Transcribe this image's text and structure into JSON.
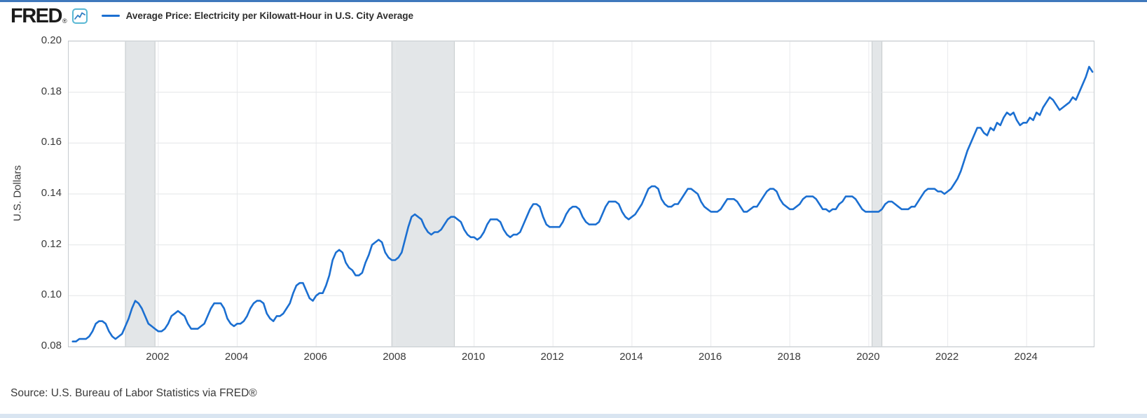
{
  "header": {
    "logo_text": "FRED",
    "registered_mark": "®",
    "legend": {
      "label": "Average Price: Electricity per Kilowatt-Hour in U.S. City Average",
      "line_color": "#1b6fd1"
    }
  },
  "footer": {
    "source": "Source: U.S. Bureau of Labor Statistics via FRED®"
  },
  "colors": {
    "top_bar": "#3f78bc",
    "bottom_bar": "#d9e5f1"
  },
  "chart_data": {
    "type": "line",
    "title": "Average Price: Electricity per Kilowatt-Hour in U.S. City Average",
    "xlabel": "",
    "ylabel": "U.S. Dollars",
    "ylim": [
      0.08,
      0.2
    ],
    "xlim_years": [
      1999.73,
      2025.7
    ],
    "y_ticks": [
      0.08,
      0.1,
      0.12,
      0.14,
      0.16,
      0.18,
      0.2
    ],
    "x_ticks": [
      2002,
      2004,
      2006,
      2008,
      2010,
      2012,
      2014,
      2016,
      2018,
      2020,
      2022,
      2024
    ],
    "grid": true,
    "legend_position": "top-left",
    "line_color": "#1b6fd1",
    "band_color": "#e3e6e8",
    "recession_bands": [
      [
        2001.167,
        2001.917
      ],
      [
        2007.917,
        2009.5
      ],
      [
        2020.083,
        2020.333
      ]
    ],
    "series": [
      {
        "name": "Average Price: Electricity per Kilowatt-Hour in U.S. City Average",
        "units": "U.S. Dollars",
        "frequency": "monthly",
        "start": "1999-11",
        "values": [
          0.082,
          0.082,
          0.083,
          0.083,
          0.083,
          0.084,
          0.086,
          0.089,
          0.09,
          0.09,
          0.089,
          0.086,
          0.084,
          0.083,
          0.084,
          0.085,
          0.088,
          0.091,
          0.095,
          0.098,
          0.097,
          0.095,
          0.092,
          0.089,
          0.088,
          0.087,
          0.086,
          0.086,
          0.087,
          0.089,
          0.092,
          0.093,
          0.094,
          0.093,
          0.092,
          0.089,
          0.087,
          0.087,
          0.087,
          0.088,
          0.089,
          0.092,
          0.095,
          0.097,
          0.097,
          0.097,
          0.095,
          0.091,
          0.089,
          0.088,
          0.089,
          0.089,
          0.09,
          0.092,
          0.095,
          0.097,
          0.098,
          0.098,
          0.097,
          0.093,
          0.091,
          0.09,
          0.092,
          0.092,
          0.093,
          0.095,
          0.097,
          0.101,
          0.104,
          0.105,
          0.105,
          0.102,
          0.099,
          0.098,
          0.1,
          0.101,
          0.101,
          0.104,
          0.108,
          0.114,
          0.117,
          0.118,
          0.117,
          0.113,
          0.111,
          0.11,
          0.108,
          0.108,
          0.109,
          0.113,
          0.116,
          0.12,
          0.121,
          0.122,
          0.121,
          0.117,
          0.115,
          0.114,
          0.114,
          0.115,
          0.117,
          0.122,
          0.127,
          0.131,
          0.132,
          0.131,
          0.13,
          0.127,
          0.125,
          0.124,
          0.125,
          0.125,
          0.126,
          0.128,
          0.13,
          0.131,
          0.131,
          0.13,
          0.129,
          0.126,
          0.124,
          0.123,
          0.123,
          0.122,
          0.123,
          0.125,
          0.128,
          0.13,
          0.13,
          0.13,
          0.129,
          0.126,
          0.124,
          0.123,
          0.124,
          0.124,
          0.125,
          0.128,
          0.131,
          0.134,
          0.136,
          0.136,
          0.135,
          0.131,
          0.128,
          0.127,
          0.127,
          0.127,
          0.127,
          0.129,
          0.132,
          0.134,
          0.135,
          0.135,
          0.134,
          0.131,
          0.129,
          0.128,
          0.128,
          0.128,
          0.129,
          0.132,
          0.135,
          0.137,
          0.137,
          0.137,
          0.136,
          0.133,
          0.131,
          0.13,
          0.131,
          0.132,
          0.134,
          0.136,
          0.139,
          0.142,
          0.143,
          0.143,
          0.142,
          0.138,
          0.136,
          0.135,
          0.135,
          0.136,
          0.136,
          0.138,
          0.14,
          0.142,
          0.142,
          0.141,
          0.14,
          0.137,
          0.135,
          0.134,
          0.133,
          0.133,
          0.133,
          0.134,
          0.136,
          0.138,
          0.138,
          0.138,
          0.137,
          0.135,
          0.133,
          0.133,
          0.134,
          0.135,
          0.135,
          0.137,
          0.139,
          0.141,
          0.142,
          0.142,
          0.141,
          0.138,
          0.136,
          0.135,
          0.134,
          0.134,
          0.135,
          0.136,
          0.138,
          0.139,
          0.139,
          0.139,
          0.138,
          0.136,
          0.134,
          0.134,
          0.133,
          0.134,
          0.134,
          0.136,
          0.137,
          0.139,
          0.139,
          0.139,
          0.138,
          0.136,
          0.134,
          0.133,
          0.133,
          0.133,
          0.133,
          0.133,
          0.134,
          0.136,
          0.137,
          0.137,
          0.136,
          0.135,
          0.134,
          0.134,
          0.134,
          0.135,
          0.135,
          0.137,
          0.139,
          0.141,
          0.142,
          0.142,
          0.142,
          0.141,
          0.141,
          0.14,
          0.141,
          0.142,
          0.144,
          0.146,
          0.149,
          0.153,
          0.157,
          0.16,
          0.163,
          0.166,
          0.166,
          0.164,
          0.163,
          0.166,
          0.165,
          0.168,
          0.167,
          0.17,
          0.172,
          0.171,
          0.172,
          0.169,
          0.167,
          0.168,
          0.168,
          0.17,
          0.169,
          0.172,
          0.171,
          0.174,
          0.176,
          0.178,
          0.177,
          0.175,
          0.173,
          0.174,
          0.175,
          0.176,
          0.178,
          0.177,
          0.18,
          0.183,
          0.186,
          0.19,
          0.188
        ]
      }
    ]
  }
}
